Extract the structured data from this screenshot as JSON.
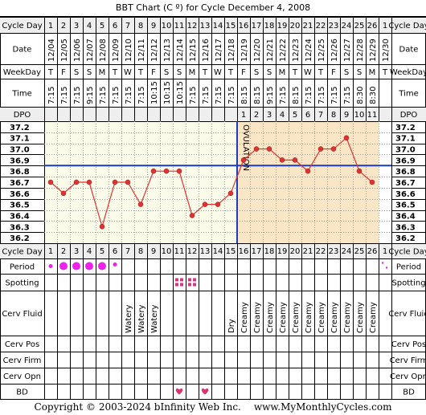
{
  "chart_data": {
    "type": "line",
    "title": "BBT Chart (C º) for Cycle December 4, 2008",
    "row_labels": {
      "cycle_day": "Cycle Day",
      "date": "Date",
      "weekday": "WeekDay",
      "time": "Time",
      "dpo": "DPO",
      "period": "Period",
      "spotting": "Spotting",
      "cerv_fluid": "Cerv Fluid",
      "cerv_pos": "Cerv Pos",
      "cerv_firm": "Cerv Firm",
      "cerv_opn": "Cerv Opn",
      "bd": "BD"
    },
    "cycle_days": [
      "1",
      "2",
      "3",
      "4",
      "5",
      "6",
      "7",
      "8",
      "9",
      "10",
      "11",
      "12",
      "13",
      "14",
      "15",
      "16",
      "17",
      "18",
      "19",
      "20",
      "21",
      "22",
      "23",
      "24",
      "25",
      "26",
      "1"
    ],
    "dates": [
      "12/04",
      "12/05",
      "12/06",
      "12/07",
      "12/08",
      "12/09",
      "12/10",
      "12/11",
      "12/12",
      "12/13",
      "12/14",
      "12/15",
      "12/16",
      "12/17",
      "12/18",
      "12/19",
      "12/20",
      "12/21",
      "12/22",
      "12/23",
      "12/24",
      "12/25",
      "12/26",
      "12/27",
      "12/28",
      "12/29",
      "12/30"
    ],
    "weekdays": [
      "T",
      "F",
      "S",
      "S",
      "M",
      "T",
      "W",
      "T",
      "F",
      "S",
      "S",
      "M",
      "T",
      "W",
      "T",
      "F",
      "S",
      "S",
      "M",
      "T",
      "W",
      "T",
      "F",
      "S",
      "S",
      "M",
      "T"
    ],
    "times": [
      "7:15",
      "7:15",
      "7:15",
      "9:15",
      "7:15",
      "7:15",
      "7:15",
      "7:15",
      "10:15",
      "10:15",
      "10:15",
      "7:15",
      "7:15",
      "7:15",
      "7:15",
      "8:15",
      "8:15",
      "9:15",
      "7:15",
      "8:15",
      "7:15",
      "7:15",
      "7:15",
      "7:15",
      "8:30",
      "8:30",
      ""
    ],
    "dpo": [
      "",
      "",
      "",
      "",
      "",
      "",
      "",
      "",
      "",
      "",
      "",
      "",
      "",
      "",
      "",
      "1",
      "2",
      "3",
      "4",
      "5",
      "6",
      "7",
      "8",
      "9",
      "10",
      "11",
      ""
    ],
    "y_ticks": [
      "37.2",
      "37.1",
      "37.0",
      "36.9",
      "36.8",
      "36.7",
      "36.6",
      "36.5",
      "36.4",
      "36.3",
      "36.2"
    ],
    "ylim": [
      36.2,
      37.2
    ],
    "temperatures": [
      36.7,
      36.6,
      36.7,
      36.7,
      36.3,
      36.7,
      36.7,
      36.5,
      36.8,
      36.8,
      36.8,
      36.4,
      36.5,
      36.5,
      36.6,
      36.9,
      37.0,
      37.0,
      36.9,
      36.9,
      36.8,
      37.0,
      37.0,
      37.1,
      36.8,
      36.7,
      null
    ],
    "coverline": 36.85,
    "ovulation_day": 15,
    "ovulation_label": "OVULATION",
    "period": [
      "heavy",
      "heavy",
      "heavy",
      "heavy",
      "heavy",
      "light",
      "",
      "",
      "",
      "",
      "",
      "",
      "",
      "",
      "",
      "",
      "",
      "",
      "",
      "",
      "",
      "",
      "",
      "",
      "",
      "",
      "spot"
    ],
    "spotting": [
      "",
      "",
      "",
      "",
      "",
      "",
      "",
      "",
      "",
      "",
      "x",
      "x",
      "",
      "",
      "",
      "",
      "",
      "",
      "",
      "",
      "",
      "",
      "",
      "",
      "",
      "",
      ""
    ],
    "cerv_fluid": [
      "",
      "",
      "",
      "",
      "",
      "",
      "Watery",
      "Watery",
      "Watery",
      "",
      "",
      "",
      "",
      "",
      "Dry",
      "Creamy",
      "Creamy",
      "Creamy",
      "Creamy",
      "Creamy",
      "Creamy",
      "Creamy",
      "Creamy",
      "Creamy",
      "Creamy",
      "Creamy",
      ""
    ],
    "bd": [
      "",
      "",
      "",
      "",
      "",
      "",
      "",
      "",
      "",
      "",
      "x",
      "",
      "x",
      "",
      "",
      "",
      "",
      "",
      "",
      "",
      "",
      "",
      "",
      "",
      "",
      "",
      ""
    ],
    "colors": {
      "line": "#dd3333",
      "coverline": "#1a3cc0",
      "ovulation": "#1a3cc0",
      "luteal_fill": "#f9e6c6",
      "follicular_fill": "#fbfbe9",
      "period": "#ee22ee",
      "spotting": "#d8338a",
      "bd": "#e0306a",
      "header_fill": "#eeeeee"
    }
  },
  "footer": {
    "copyright": "Copyright © 2003-2024 bInfinity Web Inc.",
    "site": "www.MyMonthlyCycles.com"
  }
}
